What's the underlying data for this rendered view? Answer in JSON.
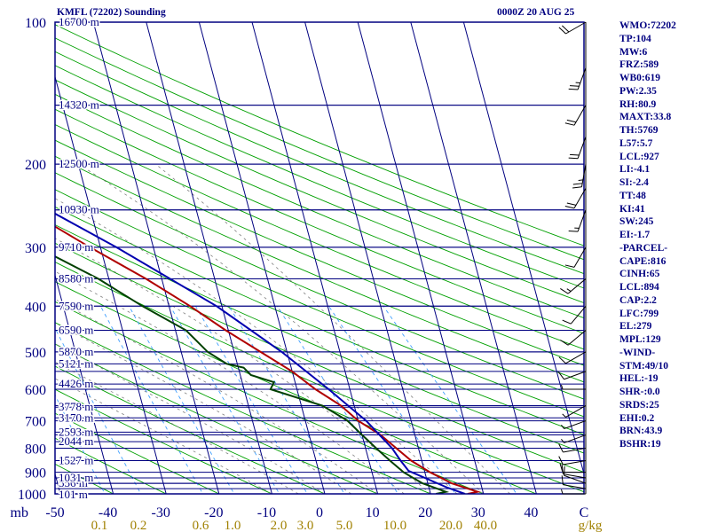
{
  "header": {
    "station": "KMFL (72202) Sounding",
    "time": "0000Z 20 AUG 25"
  },
  "colors": {
    "frame": "#000080",
    "temperature": "#b00000",
    "dewpoint": "#004000",
    "parcel": "#0000b0",
    "dry_adiabat": "#00a000",
    "mixing_ratio": "#40a0ff",
    "moist_adiabat": "#808080",
    "wind": "#000000"
  },
  "chart_data": {
    "type": "line",
    "title": "KMFL (72202) Sounding",
    "subtitle": "0000Z 20 AUG 25",
    "xlabel": "",
    "ylabel": "",
    "pressure_range": [
      1000,
      100
    ],
    "temperature_range": [
      -50,
      50
    ],
    "x_axis_labels": [
      "-50",
      "-40",
      "-30",
      "-20",
      "-10",
      "0",
      "10",
      "20",
      "30",
      "40",
      "C"
    ],
    "pressure_labels": [
      {
        "p": 100,
        "text": "100"
      },
      {
        "p": 200,
        "text": "200"
      },
      {
        "p": 300,
        "text": "300"
      },
      {
        "p": 400,
        "text": "400"
      },
      {
        "p": 500,
        "text": "500"
      },
      {
        "p": 600,
        "text": "600"
      },
      {
        "p": 700,
        "text": "700"
      },
      {
        "p": 800,
        "text": "800"
      },
      {
        "p": 900,
        "text": "900"
      },
      {
        "p": 1000,
        "text": "1000"
      },
      {
        "p": 1045,
        "text": "mb"
      }
    ],
    "mixing_ratio_labels": [
      "0.1",
      "0.2",
      "0.6",
      "1.0",
      "2.0",
      "3.0",
      "5.0",
      "10.0",
      "20.0",
      "40.0",
      "g/kg"
    ],
    "height_levels": [
      {
        "p": 1004,
        "text": "101 m"
      },
      {
        "p": 950,
        "text": "556 m"
      },
      {
        "p": 925,
        "text": "1031 m"
      },
      {
        "p": 850,
        "text": "1527 m"
      },
      {
        "p": 775,
        "text": "2044 m"
      },
      {
        "p": 740,
        "text": "2593 m"
      },
      {
        "p": 690,
        "text": "3170 m"
      },
      {
        "p": 655,
        "text": "3778 m"
      },
      {
        "p": 585,
        "text": "4426 m"
      },
      {
        "p": 530,
        "text": "5121 m"
      },
      {
        "p": 500,
        "text": "5870 m"
      },
      {
        "p": 450,
        "text": "6590 m"
      },
      {
        "p": 400,
        "text": "7590 m"
      },
      {
        "p": 350,
        "text": "8580 m"
      },
      {
        "p": 300,
        "text": "9710 m"
      },
      {
        "p": 250,
        "text": "10930 m"
      },
      {
        "p": 200,
        "text": "12500 m"
      },
      {
        "p": 150,
        "text": "14320 m"
      },
      {
        "p": 100,
        "text": "16700 m"
      }
    ],
    "series": [
      {
        "key": "temperature",
        "points": [
          [
            1000,
            27
          ],
          [
            990,
            29
          ],
          [
            950,
            24.5
          ],
          [
            925,
            22.8
          ],
          [
            900,
            21
          ],
          [
            850,
            18
          ],
          [
            800,
            15.8
          ],
          [
            750,
            13.5
          ],
          [
            700,
            10
          ],
          [
            650,
            7.5
          ],
          [
            600,
            3.5
          ],
          [
            550,
            0
          ],
          [
            500,
            -5
          ],
          [
            450,
            -10.5
          ],
          [
            400,
            -16
          ],
          [
            350,
            -23
          ],
          [
            300,
            -32
          ],
          [
            250,
            -42
          ],
          [
            225,
            -49
          ],
          [
            200,
            -54
          ],
          [
            150,
            -67
          ],
          [
            125,
            -75
          ],
          [
            100,
            -81
          ],
          [
            90,
            -76
          ]
        ]
      },
      {
        "key": "dewpoint",
        "points": [
          [
            1000,
            21
          ],
          [
            990,
            23
          ],
          [
            950,
            19
          ],
          [
            925,
            17.5
          ],
          [
            900,
            16
          ],
          [
            850,
            14
          ],
          [
            800,
            12
          ],
          [
            750,
            10
          ],
          [
            700,
            8
          ],
          [
            650,
            4
          ],
          [
            600,
            -5
          ],
          [
            580,
            -4
          ],
          [
            560,
            -8
          ],
          [
            540,
            -9
          ],
          [
            530,
            -12
          ],
          [
            500,
            -15
          ],
          [
            450,
            -18
          ],
          [
            400,
            -25
          ],
          [
            350,
            -32
          ],
          [
            300,
            -42
          ],
          [
            275,
            -47
          ],
          [
            250,
            -55
          ],
          [
            240,
            -62
          ],
          [
            200,
            -80
          ],
          [
            160,
            -75
          ],
          [
            150,
            -72
          ],
          [
            120,
            -80
          ],
          [
            100,
            -90
          ],
          [
            90,
            -92
          ]
        ]
      },
      {
        "key": "parcel",
        "points": [
          [
            1000,
            26.5
          ],
          [
            970,
            23.5
          ],
          [
            894,
            17
          ],
          [
            850,
            16
          ],
          [
            800,
            15
          ],
          [
            700,
            11.5
          ],
          [
            600,
            6
          ],
          [
            500,
            -1
          ],
          [
            400,
            -11
          ],
          [
            300,
            -27
          ],
          [
            250,
            -38
          ],
          [
            200,
            -52
          ],
          [
            150,
            -70
          ],
          [
            130,
            -79
          ]
        ]
      }
    ],
    "wind_barbs": [
      {
        "p": 1000,
        "dir": 90,
        "kt": 5
      },
      {
        "p": 975,
        "dir": 100,
        "kt": 10
      },
      {
        "p": 950,
        "dir": 110,
        "kt": 10
      },
      {
        "p": 925,
        "dir": 100,
        "kt": 10
      },
      {
        "p": 900,
        "dir": 90,
        "kt": 10
      },
      {
        "p": 850,
        "dir": 80,
        "kt": 10
      },
      {
        "p": 800,
        "dir": 80,
        "kt": 10
      },
      {
        "p": 750,
        "dir": 70,
        "kt": 5
      },
      {
        "p": 700,
        "dir": 70,
        "kt": 5
      },
      {
        "p": 650,
        "dir": 60,
        "kt": 5
      },
      {
        "p": 600,
        "dir": 90,
        "kt": 5
      },
      {
        "p": 550,
        "dir": 70,
        "kt": 10
      },
      {
        "p": 500,
        "dir": 60,
        "kt": 10
      },
      {
        "p": 450,
        "dir": 50,
        "kt": 10
      },
      {
        "p": 400,
        "dir": 40,
        "kt": 10
      },
      {
        "p": 350,
        "dir": 50,
        "kt": 15
      },
      {
        "p": 300,
        "dir": 30,
        "kt": 10
      },
      {
        "p": 250,
        "dir": 20,
        "kt": 15
      },
      {
        "p": 225,
        "dir": 30,
        "kt": 20
      },
      {
        "p": 200,
        "dir": 10,
        "kt": 25
      },
      {
        "p": 175,
        "dir": 20,
        "kt": 20
      },
      {
        "p": 150,
        "dir": 30,
        "kt": 20
      },
      {
        "p": 125,
        "dir": 20,
        "kt": 25
      },
      {
        "p": 100,
        "dir": 60,
        "kt": 20
      }
    ]
  },
  "indices": [
    "WMO:72202",
    "TP:104",
    "MW:6",
    "FRZ:589",
    "WB0:619",
    "PW:2.35",
    "RH:80.9",
    "MAXT:33.8",
    "TH:5769",
    "L57:5.7",
    "LCL:927",
    "LI:-4.1",
    "SI:-2.4",
    "TT:48",
    "KI:41",
    "SW:245",
    "EI:-1.7",
    "-PARCEL-",
    "CAPE:816",
    "CINH:65",
    "LCL:894",
    "CAP:2.2",
    "LFC:799",
    "EL:279",
    "MPL:129",
    "-WIND-",
    "STM:49/10",
    "HEL:-19",
    "SHR-:0.0",
    "SRDS:25",
    "EHI:0.2",
    "BRN:43.9",
    "BSHR:19"
  ]
}
